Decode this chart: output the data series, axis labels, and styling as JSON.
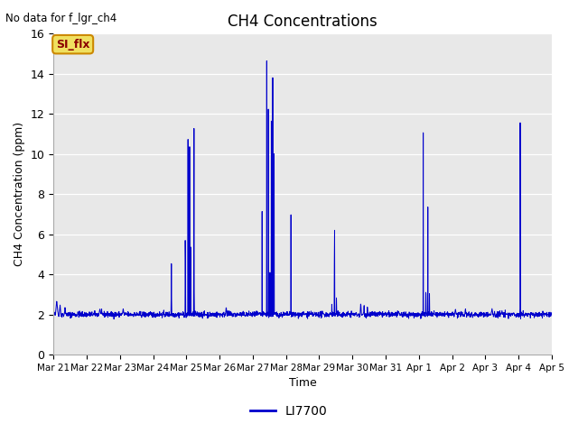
{
  "title": "CH4 Concentrations",
  "xlabel": "Time",
  "ylabel": "CH4 Concentration (ppm)",
  "top_left_text": "No data for f_lgr_ch4",
  "legend_label": "LI7700",
  "legend_color": "#0000cc",
  "line_color": "#0000cc",
  "fig_bg_color": "#ffffff",
  "plot_bg_color": "#e8e8e8",
  "ylim": [
    0,
    16
  ],
  "yticks": [
    0,
    2,
    4,
    6,
    8,
    10,
    12,
    14,
    16
  ],
  "x_tick_labels": [
    "Mar 21",
    "Mar 22",
    "Mar 23",
    "Mar 24",
    "Mar 25",
    "Mar 26",
    "Mar 27",
    "Mar 28",
    "Mar 29",
    "Mar 30",
    "Mar 31",
    "Apr 1",
    "Apr 2",
    "Apr 3",
    "Apr 4",
    "Apr 5"
  ]
}
